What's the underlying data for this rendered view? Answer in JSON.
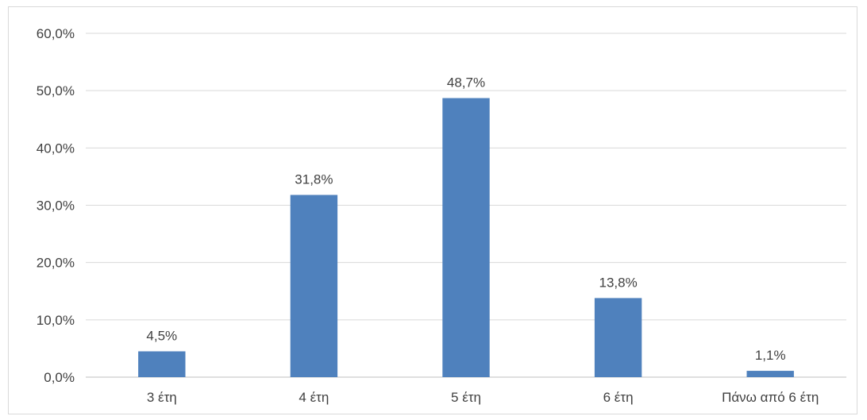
{
  "chart_data": {
    "type": "bar",
    "categories": [
      "3 έτη",
      "4 έτη",
      "5 έτη",
      "6 έτη",
      "Πάνω από 6 έτη"
    ],
    "values": [
      4.5,
      31.8,
      48.7,
      13.8,
      1.1
    ],
    "data_labels": [
      "4,5%",
      "31,8%",
      "48,7%",
      "13,8%",
      "1,1%"
    ],
    "y_ticks": [
      0,
      10,
      20,
      30,
      40,
      50,
      60
    ],
    "y_tick_labels": [
      "0,0%",
      "10,0%",
      "20,0%",
      "30,0%",
      "40,0%",
      "50,0%",
      "60,0%"
    ],
    "ylim": [
      0,
      60
    ],
    "grid": true,
    "legend": "none",
    "bar_color": "#4f81bd"
  }
}
